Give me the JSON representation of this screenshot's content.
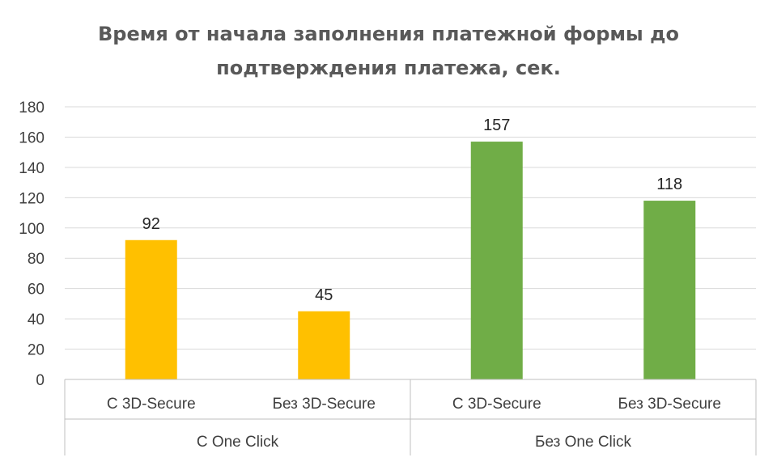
{
  "chart_data": {
    "type": "bar",
    "title_lines": [
      "Время от начала заполнения платежной формы до",
      "подтверждения платежа, сек."
    ],
    "categories": [
      "С 3D-Secure",
      "Без 3D-Secure",
      "С 3D-Secure",
      "Без 3D-Secure"
    ],
    "groups": [
      {
        "label": "C One Click",
        "categories": [
          0,
          1
        ]
      },
      {
        "label": "Без One Click",
        "categories": [
          2,
          3
        ]
      }
    ],
    "values": [
      92,
      45,
      157,
      118
    ],
    "bar_colors": [
      "#ffc000",
      "#ffc000",
      "#70ad47",
      "#70ad47"
    ],
    "ylim": [
      0,
      180
    ],
    "yticks": [
      0,
      20,
      40,
      60,
      80,
      100,
      120,
      140,
      160,
      180
    ],
    "grid": true,
    "legend": "none"
  }
}
